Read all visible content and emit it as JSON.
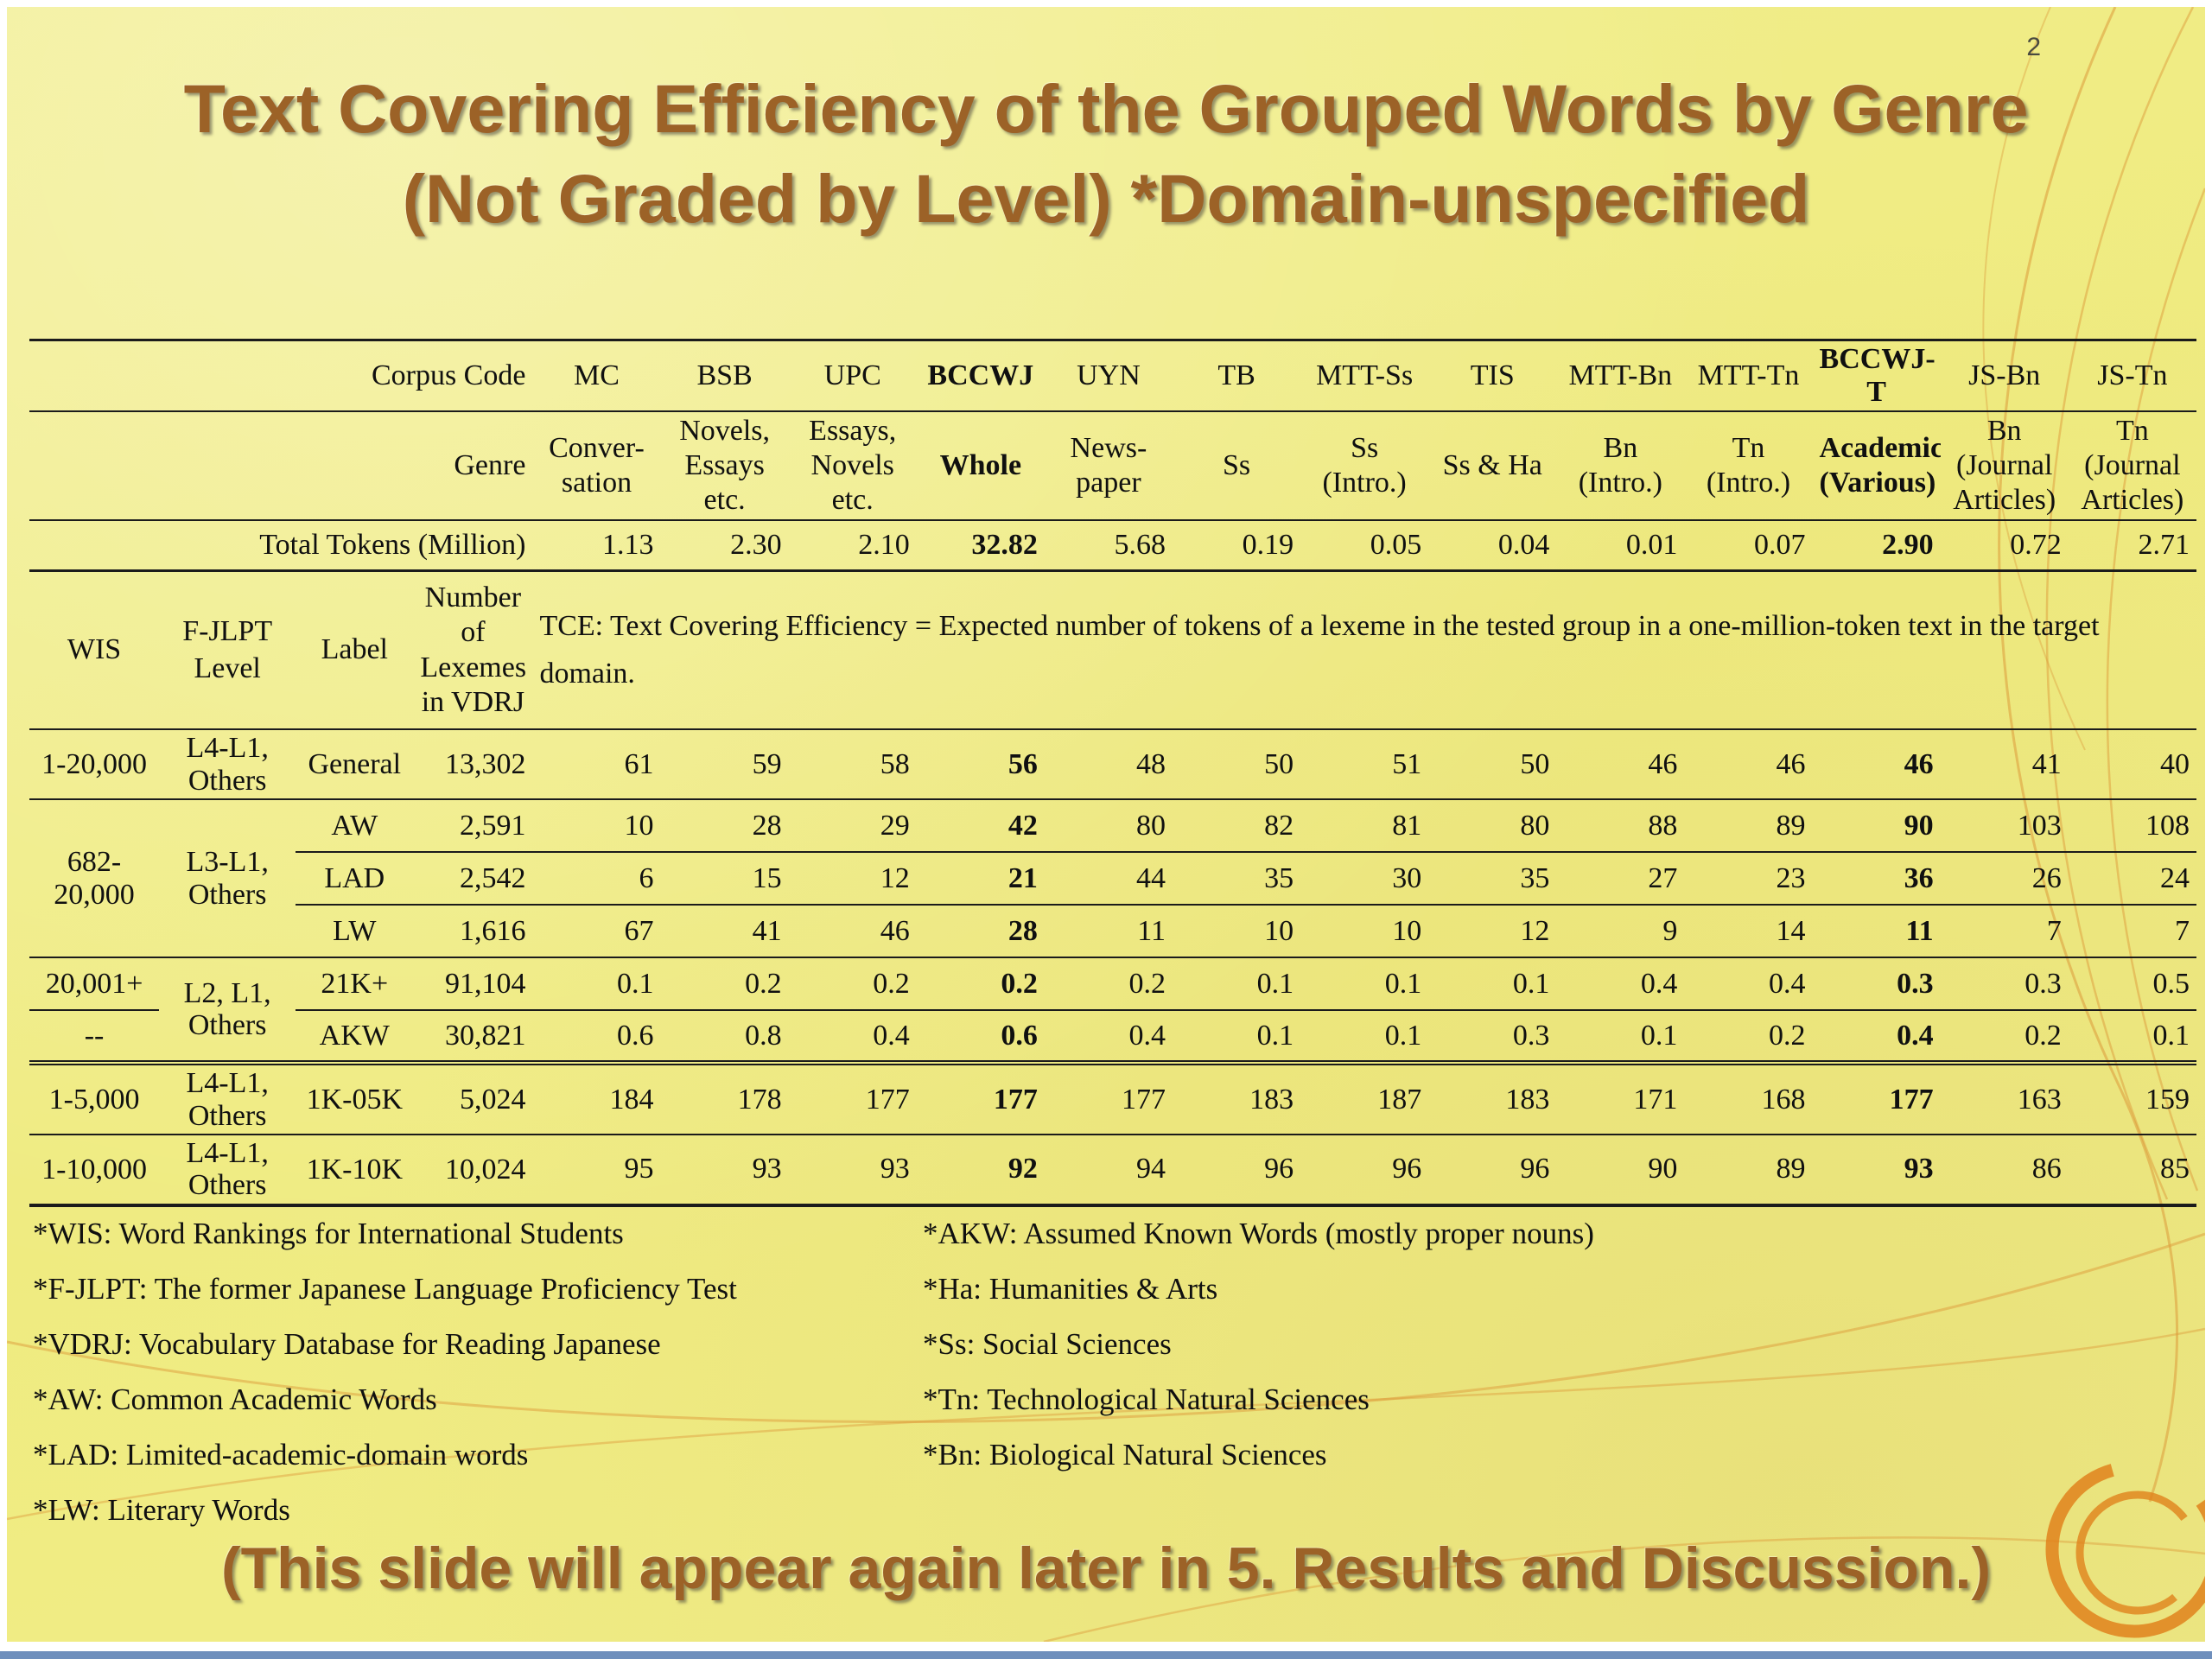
{
  "slide": {
    "page_number": "2",
    "title_lines": [
      "Text Covering Efficiency of the Grouped Words by Genre",
      "(Not Graded by Level) *Domain-unspecified"
    ],
    "footer_note": "(This slide will appear again later in 5. Results and Discussion.)"
  },
  "table": {
    "corner_labels": {
      "corpus_code": "Corpus Code",
      "genre": "Genre",
      "total_tokens": "Total Tokens (Million)"
    },
    "left_headers": {
      "wis": "WIS",
      "jlpt": "F-JLPT\nLevel",
      "label": "Label",
      "lexemes": "Number\nof\nLexemes\nin VDRJ"
    },
    "tce_note": "TCE: Text Covering Efficiency = Expected number of tokens of a lexeme in the tested group in a one-million-token text in the target domain.",
    "columns": [
      {
        "code": "MC",
        "genre": "Conver-\nsation",
        "tokens": "1.13"
      },
      {
        "code": "BSB",
        "genre": "Novels,\nEssays etc.",
        "tokens": "2.30",
        "genre_small": true
      },
      {
        "code": "UPC",
        "genre": "Essays,\nNovels\netc.",
        "tokens": "2.10",
        "genre_small": true
      },
      {
        "code": "BCCWJ",
        "genre": "Whole",
        "tokens": "32.82",
        "bold": true
      },
      {
        "code": "UYN",
        "genre": "News-\npaper",
        "tokens": "5.68"
      },
      {
        "code": "TB",
        "genre": "Ss",
        "tokens": "0.19"
      },
      {
        "code": "MTT-Ss",
        "genre": "Ss\n(Intro.)",
        "tokens": "0.05"
      },
      {
        "code": "TIS",
        "genre": "Ss & Ha",
        "tokens": "0.04"
      },
      {
        "code": "MTT-Bn",
        "genre": "Bn\n(Intro.)",
        "tokens": "0.01"
      },
      {
        "code": "MTT-Tn",
        "genre": "Tn\n(Intro.)",
        "tokens": "0.07"
      },
      {
        "code": "BCCWJ-T",
        "genre": "Academic\n(Various)",
        "tokens": "2.90",
        "bold": true,
        "genre_small": true
      },
      {
        "code": "JS-Bn",
        "genre": "Bn\n(Journal\nArticles)",
        "tokens": "0.72",
        "genre_small": true
      },
      {
        "code": "JS-Tn",
        "genre": "Tn\n(Journal\nArticles)",
        "tokens": "2.71",
        "genre_small": true
      }
    ],
    "rows": [
      {
        "cells": [
          {
            "t": "1-20,000",
            "role": "wis"
          },
          {
            "t": "L4-L1, Others",
            "role": "jlpt",
            "small": true
          },
          {
            "t": "General",
            "role": "label"
          },
          {
            "t": "13,302",
            "role": "lex"
          }
        ],
        "values": [
          "61",
          "59",
          "58",
          "56",
          "48",
          "50",
          "51",
          "50",
          "46",
          "46",
          "46",
          "41",
          "40"
        ]
      },
      {
        "cells": [
          {
            "t": "682-\n20,000",
            "role": "wis",
            "rs": 3
          },
          {
            "t": "L3-L1,\nOthers",
            "role": "jlpt",
            "rs": 3
          },
          {
            "t": "AW",
            "role": "label"
          },
          {
            "t": "2,591",
            "role": "lex"
          }
        ],
        "values": [
          "10",
          "28",
          "29",
          "42",
          "80",
          "82",
          "81",
          "80",
          "88",
          "89",
          "90",
          "103",
          "108"
        ]
      },
      {
        "cells": [
          {
            "t": "LAD",
            "role": "label"
          },
          {
            "t": "2,542",
            "role": "lex"
          }
        ],
        "values": [
          "6",
          "15",
          "12",
          "21",
          "44",
          "35",
          "30",
          "35",
          "27",
          "23",
          "36",
          "26",
          "24"
        ]
      },
      {
        "cells": [
          {
            "t": "LW",
            "role": "label"
          },
          {
            "t": "1,616",
            "role": "lex"
          }
        ],
        "values": [
          "67",
          "41",
          "46",
          "28",
          "11",
          "10",
          "10",
          "12",
          "9",
          "14",
          "11",
          "7",
          "7"
        ]
      },
      {
        "cells": [
          {
            "t": "20,001+",
            "role": "wis"
          },
          {
            "t": "L2, L1,\nOthers",
            "role": "jlpt",
            "rs": 2,
            "secb": true
          },
          {
            "t": "21K+",
            "role": "label"
          },
          {
            "t": "91,104",
            "role": "lex"
          }
        ],
        "values": [
          "0.1",
          "0.2",
          "0.2",
          "0.2",
          "0.2",
          "0.1",
          "0.1",
          "0.1",
          "0.4",
          "0.4",
          "0.3",
          "0.3",
          "0.5"
        ]
      },
      {
        "cells": [
          {
            "t": "--",
            "role": "wis"
          },
          {
            "t": "AKW",
            "role": "label"
          },
          {
            "t": "30,821",
            "role": "lex"
          }
        ],
        "values": [
          "0.6",
          "0.8",
          "0.4",
          "0.6",
          "0.4",
          "0.1",
          "0.1",
          "0.3",
          "0.1",
          "0.2",
          "0.4",
          "0.2",
          "0.1"
        ],
        "section_end": true
      },
      {
        "cells": [
          {
            "t": "1-5,000",
            "role": "wis"
          },
          {
            "t": "L4-L1, Others",
            "role": "jlpt",
            "small": true
          },
          {
            "t": "1K-05K",
            "role": "label"
          },
          {
            "t": "5,024",
            "role": "lex"
          }
        ],
        "values": [
          "184",
          "178",
          "177",
          "177",
          "177",
          "183",
          "187",
          "183",
          "171",
          "168",
          "177",
          "163",
          "159"
        ]
      },
      {
        "cells": [
          {
            "t": "1-10,000",
            "role": "wis"
          },
          {
            "t": "L4-L1, Others",
            "role": "jlpt",
            "small": true
          },
          {
            "t": "1K-10K",
            "role": "label"
          },
          {
            "t": "10,024",
            "role": "lex"
          }
        ],
        "values": [
          "95",
          "93",
          "93",
          "92",
          "94",
          "96",
          "96",
          "96",
          "90",
          "89",
          "93",
          "86",
          "85"
        ]
      }
    ]
  },
  "footnotes": {
    "left": [
      "*WIS: Word Rankings for International Students",
      "*F-JLPT: The former Japanese Language Proficiency Test",
      "*VDRJ: Vocabulary Database for Reading Japanese",
      "*AW: Common Academic Words",
      "*LAD: Limited-academic-domain words",
      "*LW: Literary Words"
    ],
    "right": [
      "*AKW: Assumed Known Words (mostly proper nouns)",
      "*Ha: Humanities & Arts",
      "*Ss: Social Sciences",
      "*Tn: Technological Natural Sciences",
      "*Bn: Biological Natural Sciences"
    ]
  },
  "colors": {
    "background": "#f0ec85",
    "title_text": "#9c6227",
    "ornament_line": "#dd9b3b",
    "swirl": "#e0821c",
    "table_rule": "#1b1b1b",
    "bottom_bar": "#6f8fbc"
  }
}
